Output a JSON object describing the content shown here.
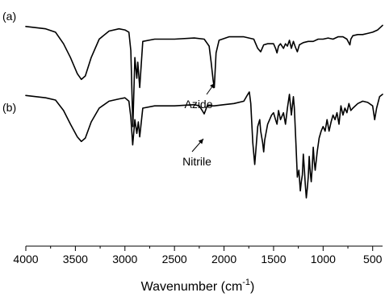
{
  "chart_data": {
    "type": "line",
    "title": "",
    "xlabel": "Wavenumber (cm",
    "xlabel_sup": "-1",
    "xlabel_close": ")",
    "ylabel": "",
    "xlim": [
      4000,
      400
    ],
    "x_reversed": true,
    "ylim": [
      0,
      1
    ],
    "grid": false,
    "x_ticks": [
      4000,
      3500,
      3000,
      2500,
      2000,
      1500,
      1000,
      500
    ],
    "x_tick_labels": [
      "4000",
      "3500",
      "3000",
      "2500",
      "2000",
      "1500",
      "1000",
      "500"
    ],
    "series": [
      {
        "label": "(a)",
        "x": [
          4000,
          3800,
          3700,
          3620,
          3550,
          3480,
          3440,
          3400,
          3340,
          3260,
          3160,
          3060,
          3000,
          2960,
          2940,
          2920,
          2900,
          2880,
          2870,
          2851,
          2820,
          2700,
          2500,
          2300,
          2200,
          2150,
          2130,
          2110,
          2098,
          2080,
          2050,
          1950,
          1800,
          1700,
          1660,
          1630,
          1600,
          1560,
          1500,
          1480,
          1465,
          1450,
          1430,
          1400,
          1380,
          1360,
          1340,
          1320,
          1300,
          1280,
          1260,
          1240,
          1220,
          1200,
          1150,
          1100,
          1050,
          1000,
          950,
          900,
          850,
          800,
          760,
          730,
          720,
          700,
          650,
          600,
          550,
          500,
          450,
          400
        ],
        "y": [
          0.955,
          0.945,
          0.93,
          0.88,
          0.82,
          0.75,
          0.725,
          0.74,
          0.82,
          0.9,
          0.935,
          0.945,
          0.94,
          0.93,
          0.85,
          0.52,
          0.82,
          0.73,
          0.8,
          0.69,
          0.89,
          0.9,
          0.9,
          0.905,
          0.9,
          0.87,
          0.8,
          0.72,
          0.69,
          0.84,
          0.895,
          0.91,
          0.91,
          0.9,
          0.86,
          0.845,
          0.875,
          0.88,
          0.88,
          0.86,
          0.84,
          0.87,
          0.88,
          0.86,
          0.88,
          0.87,
          0.895,
          0.86,
          0.89,
          0.865,
          0.845,
          0.875,
          0.88,
          0.885,
          0.89,
          0.89,
          0.9,
          0.9,
          0.905,
          0.9,
          0.91,
          0.91,
          0.9,
          0.875,
          0.9,
          0.915,
          0.92,
          0.92,
          0.925,
          0.93,
          0.94,
          0.96
        ]
      },
      {
        "label": "(b)",
        "x": [
          4000,
          3800,
          3700,
          3620,
          3550,
          3480,
          3440,
          3400,
          3340,
          3260,
          3160,
          3060,
          3000,
          2960,
          2940,
          2922,
          2900,
          2880,
          2865,
          2851,
          2820,
          2700,
          2500,
          2300,
          2250,
          2220,
          2200,
          2170,
          2100,
          2000,
          1900,
          1800,
          1760,
          1745,
          1730,
          1710,
          1690,
          1660,
          1640,
          1630,
          1610,
          1600,
          1590,
          1560,
          1520,
          1500,
          1480,
          1465,
          1450,
          1440,
          1430,
          1400,
          1380,
          1360,
          1340,
          1320,
          1300,
          1290,
          1275,
          1260,
          1245,
          1230,
          1220,
          1210,
          1200,
          1190,
          1180,
          1170,
          1160,
          1150,
          1140,
          1130,
          1120,
          1110,
          1100,
          1090,
          1080,
          1060,
          1040,
          1020,
          1000,
          980,
          960,
          940,
          920,
          900,
          880,
          860,
          840,
          820,
          800,
          780,
          760,
          740,
          720,
          700,
          650,
          600,
          550,
          500,
          480,
          460,
          430,
          400
        ],
        "y": [
          0.655,
          0.645,
          0.635,
          0.59,
          0.53,
          0.475,
          0.455,
          0.47,
          0.54,
          0.6,
          0.63,
          0.64,
          0.645,
          0.63,
          0.56,
          0.44,
          0.55,
          0.49,
          0.54,
          0.475,
          0.6,
          0.61,
          0.61,
          0.615,
          0.61,
          0.59,
          0.575,
          0.61,
          0.61,
          0.615,
          0.62,
          0.63,
          0.66,
          0.67,
          0.62,
          0.45,
          0.355,
          0.52,
          0.55,
          0.5,
          0.45,
          0.41,
          0.46,
          0.53,
          0.57,
          0.58,
          0.55,
          0.53,
          0.59,
          0.57,
          0.55,
          0.58,
          0.53,
          0.6,
          0.66,
          0.57,
          0.65,
          0.6,
          0.45,
          0.3,
          0.33,
          0.24,
          0.28,
          0.31,
          0.4,
          0.34,
          0.27,
          0.21,
          0.25,
          0.3,
          0.39,
          0.32,
          0.28,
          0.34,
          0.43,
          0.37,
          0.33,
          0.41,
          0.47,
          0.5,
          0.52,
          0.5,
          0.55,
          0.5,
          0.54,
          0.57,
          0.55,
          0.58,
          0.53,
          0.61,
          0.57,
          0.6,
          0.58,
          0.62,
          0.59,
          0.6,
          0.62,
          0.63,
          0.625,
          0.61,
          0.55,
          0.6,
          0.65,
          0.66
        ]
      }
    ],
    "annotations": [
      {
        "text": "Azide",
        "x": 2098
      },
      {
        "text": "Nitrile",
        "x": 2220
      }
    ]
  }
}
